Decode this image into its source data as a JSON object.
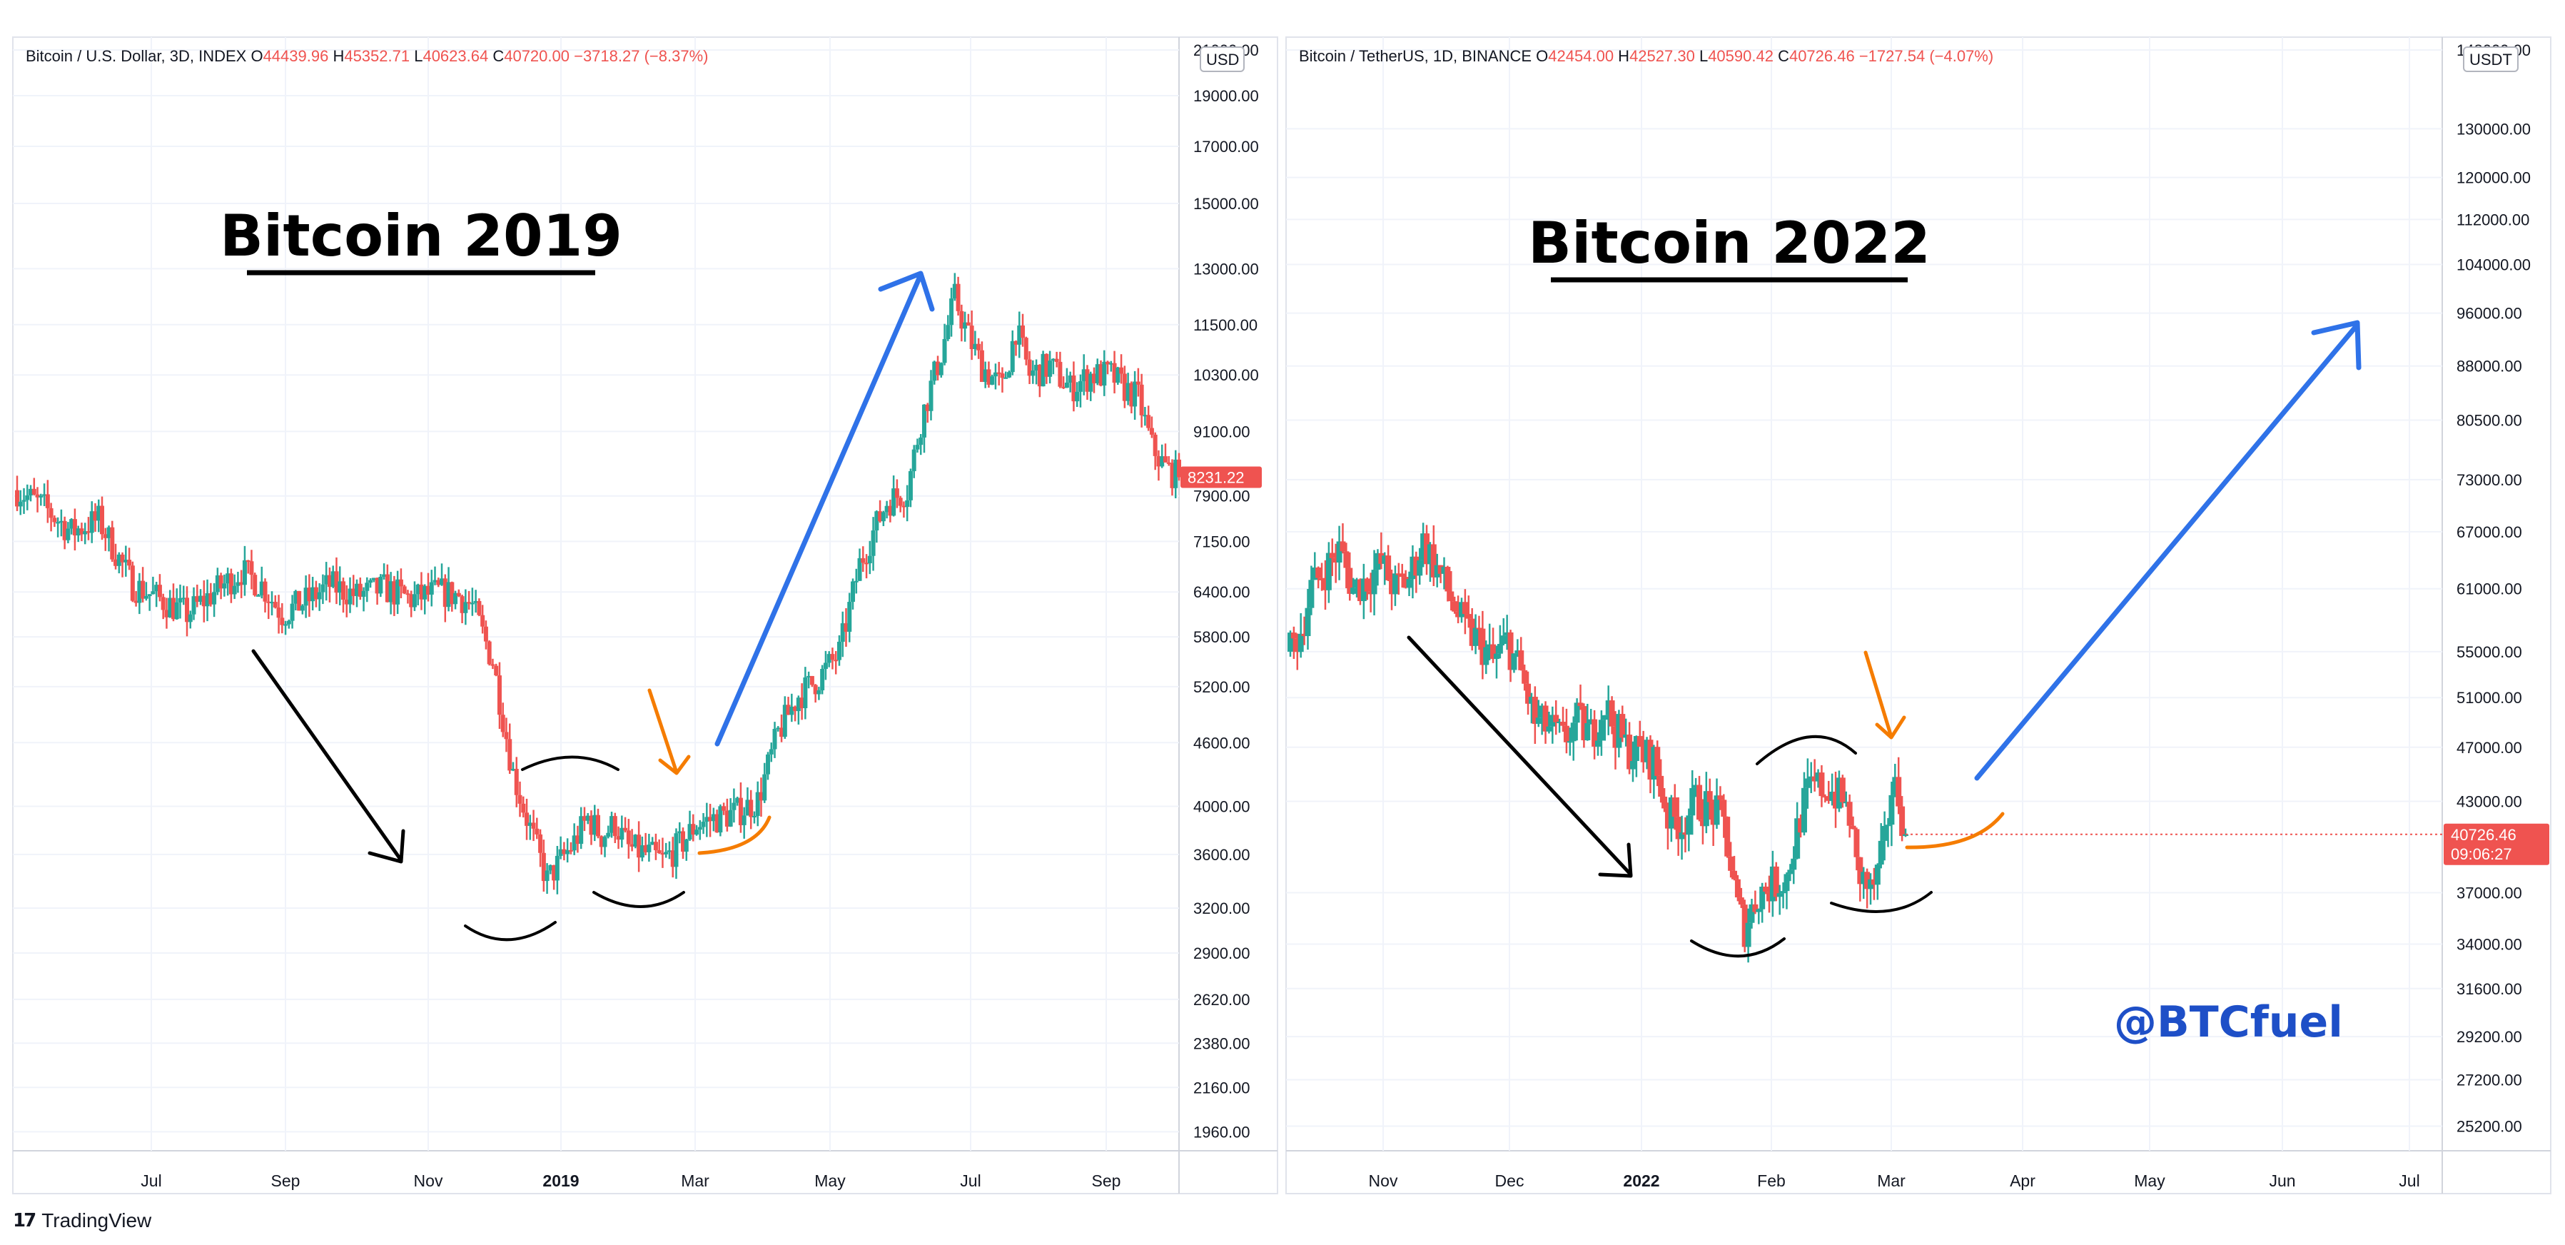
{
  "footer": {
    "logo_icon": "tradingview-logo-icon",
    "logo_text": "TradingView"
  },
  "colors": {
    "up": "#26a69a",
    "down": "#ef5350",
    "grid": "#f0f3fa",
    "axis_text": "#131722",
    "price_tag": "#ef5350",
    "arrow_blue": "#2f72e8",
    "arrow_orange": "#f57c00",
    "arc": "#000000",
    "watermark": "#1e4fc7"
  },
  "chart_data": [
    {
      "type": "candlestick",
      "title": "Bitcoin 2019",
      "header": {
        "symbol": "Bitcoin / U.S. Dollar, 3D, INDEX",
        "o_label": "O",
        "o": "44439.96",
        "h_label": "H",
        "h": "45352.71",
        "l_label": "L",
        "l": "40623.64",
        "c_label": "C",
        "c": "40720.00",
        "change": "−3718.27 (−8.37%)"
      },
      "currency": "USD",
      "scale": "log",
      "ylim": [
        1880,
        21000
      ],
      "y_ticks": [
        "21000.00",
        "19000.00",
        "17000.00",
        "15000.00",
        "13000.00",
        "11500.00",
        "10300.00",
        "9100.00",
        "7900.00",
        "7150.00",
        "6400.00",
        "5800.00",
        "5200.00",
        "4600.00",
        "4000.00",
        "3600.00",
        "3200.00",
        "2900.00",
        "2620.00",
        "2380.00",
        "2160.00",
        "1960.00"
      ],
      "x_ticks": [
        {
          "label": "Jul",
          "bold": false
        },
        {
          "label": "Sep",
          "bold": false
        },
        {
          "label": "Nov",
          "bold": false
        },
        {
          "label": "2019",
          "bold": true
        },
        {
          "label": "Mar",
          "bold": false
        },
        {
          "label": "May",
          "bold": false
        },
        {
          "label": "Jul",
          "bold": false
        },
        {
          "label": "Sep",
          "bold": false
        }
      ],
      "last_price_label": "8231.22",
      "price_path": [
        [
          0,
          8000
        ],
        [
          8,
          7700
        ],
        [
          16,
          7300
        ],
        [
          24,
          7500
        ],
        [
          34,
          6500
        ],
        [
          42,
          6300
        ],
        [
          50,
          6100
        ],
        [
          58,
          6400
        ],
        [
          66,
          6700
        ],
        [
          72,
          6500
        ],
        [
          78,
          6100
        ],
        [
          86,
          6300
        ],
        [
          92,
          6500
        ],
        [
          100,
          6350
        ],
        [
          108,
          6450
        ],
        [
          116,
          6300
        ],
        [
          124,
          6400
        ],
        [
          130,
          6350
        ],
        [
          134,
          6200
        ],
        [
          140,
          5500
        ],
        [
          146,
          4300
        ],
        [
          150,
          3900
        ],
        [
          156,
          3400
        ],
        [
          160,
          3550
        ],
        [
          164,
          3700
        ],
        [
          168,
          3900
        ],
        [
          172,
          3750
        ],
        [
          176,
          3850
        ],
        [
          180,
          3650
        ],
        [
          186,
          3600
        ],
        [
          190,
          3550
        ],
        [
          196,
          3700
        ],
        [
          200,
          3850
        ],
        [
          206,
          3900
        ],
        [
          212,
          3950
        ],
        [
          218,
          4050
        ],
        [
          224,
          4700
        ],
        [
          230,
          5100
        ],
        [
          236,
          5300
        ],
        [
          242,
          5600
        ],
        [
          248,
          6800
        ],
        [
          252,
          7300
        ],
        [
          256,
          7800
        ],
        [
          262,
          8000
        ],
        [
          266,
          9300
        ],
        [
          268,
          9800
        ],
        [
          272,
          10800
        ],
        [
          276,
          12200
        ],
        [
          280,
          11200
        ],
        [
          284,
          10500
        ],
        [
          290,
          10000
        ],
        [
          294,
          11400
        ],
        [
          298,
          10300
        ],
        [
          304,
          10500
        ],
        [
          310,
          10000
        ],
        [
          316,
          10300
        ],
        [
          322,
          10300
        ],
        [
          326,
          10000
        ],
        [
          330,
          9800
        ],
        [
          334,
          8800
        ],
        [
          338,
          8400
        ],
        [
          342,
          8231
        ]
      ],
      "annotations": [
        {
          "kind": "arrow",
          "color": "black",
          "desc": "downtrend"
        },
        {
          "kind": "arrow",
          "color": "orange",
          "desc": "breakout point"
        },
        {
          "kind": "arrow",
          "color": "blue",
          "desc": "rally"
        },
        {
          "kind": "arc",
          "color": "black",
          "desc": "double bottom"
        },
        {
          "kind": "arc",
          "color": "orange",
          "desc": "breakout curve"
        }
      ]
    },
    {
      "type": "candlestick",
      "title": "Bitcoin 2022",
      "header": {
        "symbol": "Bitcoin / TetherUS, 1D, BINANCE",
        "o_label": "O",
        "o": "42454.00",
        "h_label": "H",
        "h": "42527.30",
        "l_label": "L",
        "l": "40590.42",
        "c_label": "C",
        "c": "40726.46",
        "change": "−1727.54 (−4.07%)"
      },
      "currency": "USDT",
      "scale": "log",
      "ylim": [
        24200,
        148000
      ],
      "y_ticks": [
        "148000.00",
        "130000.00",
        "120000.00",
        "112000.00",
        "104000.00",
        "96000.00",
        "88000.00",
        "80500.00",
        "73000.00",
        "67000.00",
        "61000.00",
        "55000.00",
        "51000.00",
        "47000.00",
        "43000.00",
        "37000.00",
        "34000.00",
        "31600.00",
        "29200.00",
        "27200.00",
        "25200.00"
      ],
      "x_ticks": [
        {
          "label": "Nov",
          "bold": false
        },
        {
          "label": "Dec",
          "bold": false
        },
        {
          "label": "2022",
          "bold": true
        },
        {
          "label": "Feb",
          "bold": false
        },
        {
          "label": "Mar",
          "bold": false
        },
        {
          "label": "Apr",
          "bold": false
        },
        {
          "label": "May",
          "bold": false
        },
        {
          "label": "Jun",
          "bold": false
        },
        {
          "label": "Jul",
          "bold": false
        }
      ],
      "last_price_label": "40726.46",
      "countdown_label": "09:06:27",
      "price_path": [
        [
          0,
          55000
        ],
        [
          3,
          57000
        ],
        [
          6,
          61000
        ],
        [
          10,
          63000
        ],
        [
          14,
          65000
        ],
        [
          18,
          61000
        ],
        [
          22,
          62000
        ],
        [
          26,
          63500
        ],
        [
          30,
          61000
        ],
        [
          34,
          62000
        ],
        [
          36,
          64000
        ],
        [
          38,
          66000
        ],
        [
          42,
          63000
        ],
        [
          46,
          60000
        ],
        [
          50,
          57000
        ],
        [
          54,
          56000
        ],
        [
          58,
          54000
        ],
        [
          62,
          56000
        ],
        [
          66,
          53000
        ],
        [
          70,
          49000
        ],
        [
          74,
          48500
        ],
        [
          78,
          47500
        ],
        [
          82,
          49000
        ],
        [
          86,
          48000
        ],
        [
          90,
          50500
        ],
        [
          92,
          49000
        ],
        [
          96,
          47000
        ],
        [
          100,
          46500
        ],
        [
          104,
          46000
        ],
        [
          108,
          42000
        ],
        [
          112,
          41500
        ],
        [
          116,
          43000
        ],
        [
          120,
          42500
        ],
        [
          124,
          41500
        ],
        [
          128,
          36000
        ],
        [
          130,
          35000
        ],
        [
          134,
          37000
        ],
        [
          138,
          37500
        ],
        [
          142,
          38000
        ],
        [
          146,
          42000
        ],
        [
          148,
          43500
        ],
        [
          150,
          44000
        ],
        [
          154,
          44000
        ],
        [
          158,
          43000
        ],
        [
          160,
          42000
        ],
        [
          162,
          38500
        ],
        [
          166,
          37000
        ],
        [
          168,
          38000
        ],
        [
          170,
          40000
        ],
        [
          172,
          44000
        ],
        [
          174,
          43500
        ],
        [
          176,
          40726
        ]
      ],
      "annotations": [
        {
          "kind": "arrow",
          "color": "black",
          "desc": "downtrend"
        },
        {
          "kind": "arrow",
          "color": "orange",
          "desc": "breakout point"
        },
        {
          "kind": "arrow",
          "color": "blue",
          "desc": "projected rally"
        },
        {
          "kind": "arc",
          "color": "black",
          "desc": "bottoms"
        },
        {
          "kind": "arc",
          "color": "orange",
          "desc": "breakout curve"
        }
      ],
      "watermark": "@BTCfuel"
    }
  ]
}
